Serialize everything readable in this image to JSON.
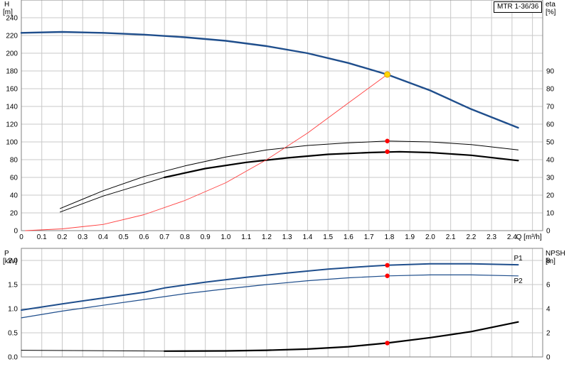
{
  "model_label": "MTR 1-36/36",
  "colors": {
    "grid": "#c8c8c8",
    "frame": "#808080",
    "blue": "#1f4e8c",
    "black": "#000000",
    "red_line": "#ff4040",
    "red_dot": "#ff0000",
    "yellow_dot": "#ffd700"
  },
  "chart_data": [
    {
      "type": "line",
      "x_label": "Q [m³/h]",
      "xlim": [
        0,
        2.55
      ],
      "x_ticks": [
        "0",
        "0.1",
        "0.2",
        "0.3",
        "0.4",
        "0.5",
        "0.6",
        "0.7",
        "0.8",
        "0.9",
        "1.0",
        "1.1",
        "1.2",
        "1.3",
        "1.4",
        "1.5",
        "1.6",
        "1.7",
        "1.8",
        "1.9",
        "2.0",
        "2.1",
        "2.2",
        "2.3",
        "2.4"
      ],
      "y_left_label": [
        "H",
        "[m]"
      ],
      "y_left_lim": [
        0,
        260
      ],
      "y_left_ticks": [
        "0",
        "20",
        "40",
        "60",
        "80",
        "100",
        "120",
        "140",
        "160",
        "180",
        "200",
        "220",
        "240"
      ],
      "y_right_label": [
        "eta",
        "[%]"
      ],
      "y_right_lim": [
        0,
        130
      ],
      "y_right_ticks": [
        "0",
        "10",
        "20",
        "30",
        "40",
        "50",
        "60",
        "70",
        "80",
        "90"
      ],
      "grid": true,
      "series": [
        {
          "axis": "left",
          "style": "blue-thick",
          "x": [
            0,
            0.2,
            0.4,
            0.6,
            0.8,
            1.0,
            1.2,
            1.4,
            1.6,
            1.79,
            2.0,
            2.2,
            2.43
          ],
          "y": [
            223,
            224,
            223,
            221,
            218,
            214,
            208,
            200,
            189,
            176,
            158,
            137,
            116
          ]
        },
        {
          "axis": "left",
          "style": "black-thin",
          "x": [
            0.19,
            0.4,
            0.6,
            0.8,
            1.0,
            1.2,
            1.4,
            1.6,
            1.79,
            2.0,
            2.2,
            2.43
          ],
          "y": [
            25,
            45,
            61,
            73,
            83,
            91,
            96,
            99,
            101,
            100,
            97,
            91
          ]
        },
        {
          "axis": "left",
          "style": "black-thin",
          "x": [
            0.19,
            0.4,
            0.6,
            0.7
          ],
          "y": [
            21,
            39,
            53,
            60
          ]
        },
        {
          "axis": "left",
          "style": "black-thick",
          "x": [
            0.7,
            0.9,
            1.1,
            1.3,
            1.5,
            1.7,
            1.85,
            2.0,
            2.2,
            2.43
          ],
          "y": [
            60,
            70,
            77,
            82,
            86,
            88,
            89,
            88,
            85,
            79
          ]
        },
        {
          "axis": "right",
          "style": "red-thin",
          "x": [
            0.02,
            0.2,
            0.4,
            0.6,
            0.8,
            1.0,
            1.2,
            1.4,
            1.6,
            1.79
          ],
          "y": [
            0,
            1,
            3.5,
            9,
            17,
            27,
            40,
            55,
            72,
            88
          ]
        }
      ],
      "markers": [
        {
          "axis": "left",
          "x": 1.79,
          "y": 176,
          "color": "yellow"
        },
        {
          "axis": "left",
          "x": 1.79,
          "y": 101,
          "color": "red"
        },
        {
          "axis": "left",
          "x": 1.79,
          "y": 89,
          "color": "red"
        }
      ]
    },
    {
      "type": "line",
      "xlim": [
        0,
        2.55
      ],
      "y_left_label": [
        "P",
        "[kW]"
      ],
      "y_left_lim": [
        0,
        2.25
      ],
      "y_left_ticks": [
        "0.0",
        "0.5",
        "1.0",
        "1.5",
        "2.0"
      ],
      "y_right_label": [
        "NPSH",
        "[m]"
      ],
      "y_right_lim": [
        0,
        9
      ],
      "y_right_ticks": [
        "0",
        "2",
        "4",
        "6",
        "8"
      ],
      "grid": true,
      "series": [
        {
          "name": "P1",
          "axis": "left",
          "style": "blue-medium",
          "x": [
            0,
            0.2,
            0.4,
            0.6,
            0.7,
            0.9,
            1.1,
            1.3,
            1.5,
            1.7,
            1.79,
            2.0,
            2.2,
            2.43
          ],
          "y": [
            0.97,
            1.1,
            1.22,
            1.34,
            1.43,
            1.55,
            1.65,
            1.74,
            1.82,
            1.88,
            1.9,
            1.93,
            1.93,
            1.91
          ]
        },
        {
          "name": "P2",
          "axis": "left",
          "style": "blue-thin",
          "x": [
            0,
            0.2,
            0.4,
            0.6,
            0.8,
            1.0,
            1.2,
            1.4,
            1.6,
            1.79,
            2.0,
            2.2,
            2.43
          ],
          "y": [
            0.81,
            0.95,
            1.07,
            1.19,
            1.31,
            1.41,
            1.5,
            1.58,
            1.64,
            1.68,
            1.7,
            1.7,
            1.68
          ]
        },
        {
          "axis": "right",
          "style": "black-thin",
          "x": [
            0,
            0.7
          ],
          "y": [
            0.55,
            0.48
          ]
        },
        {
          "axis": "right",
          "style": "black-thick",
          "x": [
            0.7,
            1.0,
            1.2,
            1.4,
            1.6,
            1.79,
            2.0,
            2.2,
            2.43
          ],
          "y": [
            0.48,
            0.5,
            0.55,
            0.65,
            0.85,
            1.15,
            1.6,
            2.1,
            2.9
          ]
        }
      ],
      "markers": [
        {
          "axis": "left",
          "x": 1.79,
          "y": 1.9,
          "color": "red"
        },
        {
          "axis": "left",
          "x": 1.79,
          "y": 1.68,
          "color": "red"
        },
        {
          "axis": "right",
          "x": 1.79,
          "y": 1.15,
          "color": "red"
        }
      ]
    }
  ]
}
